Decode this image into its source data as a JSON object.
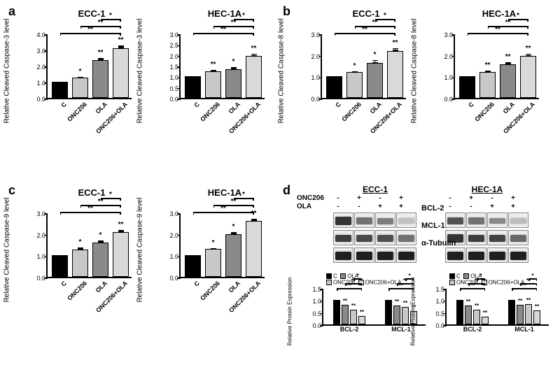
{
  "groups": [
    "C",
    "ONC206",
    "OLA",
    "ONC206+OLA"
  ],
  "colors": {
    "C": "#000000",
    "ONC206": "#c8c8c8",
    "OLA": "#8a8a8a",
    "combo": "#d9d9d9"
  },
  "panels": {
    "a": {
      "ylab": "Relative Cleaved Caspase-3 level",
      "ECC-1": {
        "ymax": 4.0,
        "ystep": 1.0,
        "vals": [
          1.0,
          1.25,
          2.35,
          3.1
        ],
        "err": [
          0,
          0.06,
          0.15,
          0.15
        ],
        "barstars": [
          "",
          "*",
          "**",
          "**"
        ],
        "sig": [
          [
            0,
            3,
            "**"
          ],
          [
            1,
            3,
            "**"
          ],
          [
            2,
            3,
            "*"
          ]
        ]
      },
      "HEC-1A": {
        "ymax": 3.0,
        "ystep": 0.5,
        "vals": [
          1.0,
          1.25,
          1.35,
          1.95
        ],
        "err": [
          0,
          0.05,
          0.1,
          0.12
        ],
        "barstars": [
          "",
          "**",
          "*",
          "**"
        ],
        "sig": [
          [
            0,
            3,
            "**"
          ],
          [
            1,
            3,
            "**"
          ],
          [
            2,
            3,
            "*"
          ]
        ]
      }
    },
    "b": {
      "ylab": "Relative Cleaved Caspase-8 level",
      "ECC-1": {
        "ymax": 3.0,
        "ystep": 1.0,
        "vals": [
          1.0,
          1.2,
          1.62,
          2.2
        ],
        "err": [
          0,
          0.05,
          0.15,
          0.12
        ],
        "barstars": [
          "",
          "*",
          "*",
          "**"
        ],
        "sig": [
          [
            0,
            3,
            "**"
          ],
          [
            1,
            3,
            "**"
          ],
          [
            2,
            3,
            "*"
          ]
        ]
      },
      "HEC-1A": {
        "ymax": 3.0,
        "ystep": 1.0,
        "vals": [
          1.0,
          1.22,
          1.55,
          1.95
        ],
        "err": [
          0,
          0.05,
          0.1,
          0.12
        ],
        "barstars": [
          "",
          "**",
          "**",
          "**"
        ],
        "sig": [
          [
            0,
            3,
            "**"
          ],
          [
            1,
            3,
            "**"
          ],
          [
            2,
            3,
            "*"
          ]
        ]
      }
    },
    "c": {
      "ylab": "Relative Cleaved Caspase-9 level",
      "ECC-1": {
        "ymax": 3.0,
        "ystep": 1.0,
        "vals": [
          1.0,
          1.28,
          1.6,
          2.1
        ],
        "err": [
          0,
          0.08,
          0.1,
          0.1
        ],
        "barstars": [
          "",
          "*",
          "*",
          "**"
        ],
        "sig": [
          [
            0,
            3,
            "**"
          ],
          [
            1,
            3,
            "**"
          ],
          [
            2,
            3,
            "*"
          ]
        ]
      },
      "HEC-1A": {
        "ymax": 3.0,
        "ystep": 1.0,
        "vals": [
          1.0,
          1.3,
          2.0,
          2.6
        ],
        "err": [
          0,
          0.05,
          0.1,
          0.1
        ],
        "barstars": [
          "",
          "*",
          "*",
          "**"
        ],
        "sig": [
          [
            0,
            3,
            "**"
          ],
          [
            1,
            3,
            "**"
          ],
          [
            2,
            3,
            "*"
          ]
        ]
      }
    }
  },
  "wb": {
    "treatments": [
      {
        "name": "ONC206",
        "pattern": [
          "-",
          "+",
          "-",
          "+"
        ]
      },
      {
        "name": "OLA",
        "pattern": [
          "-",
          "-",
          "+",
          "+"
        ]
      }
    ],
    "proteins": [
      "BCL-2",
      "MCL-1",
      "α-Tubulin"
    ],
    "cells": [
      "ECC-1",
      "HEC-1A"
    ],
    "bands": {
      "ECC-1": {
        "BCL-2": [
          0.85,
          0.55,
          0.5,
          0.18
        ],
        "MCL-1": [
          0.8,
          0.75,
          0.72,
          0.55
        ],
        "α-Tubulin": [
          0.95,
          0.95,
          0.95,
          0.95
        ]
      },
      "HEC-1A": {
        "BCL-2": [
          0.7,
          0.55,
          0.45,
          0.2
        ],
        "MCL-1": [
          0.85,
          0.8,
          0.78,
          0.6
        ],
        "α-Tubulin": [
          0.95,
          0.95,
          0.95,
          0.95
        ]
      }
    }
  },
  "d_charts": {
    "ylab": "Relative Protein Expression",
    "ymax": 1.5,
    "ystep": 0.5,
    "proteins": [
      "BCL-2",
      "MCL-1"
    ],
    "legend": [
      "C",
      "OLA",
      "ONC206",
      "ONC206+OLA"
    ],
    "ECC-1": {
      "BCL-2": [
        1.0,
        0.8,
        0.6,
        0.35
      ],
      "MCL-1": [
        1.0,
        0.78,
        0.72,
        0.55
      ]
    },
    "HEC-1A": {
      "BCL-2": [
        1.0,
        0.78,
        0.62,
        0.32
      ],
      "MCL-1": [
        1.0,
        0.8,
        0.83,
        0.58
      ]
    }
  }
}
